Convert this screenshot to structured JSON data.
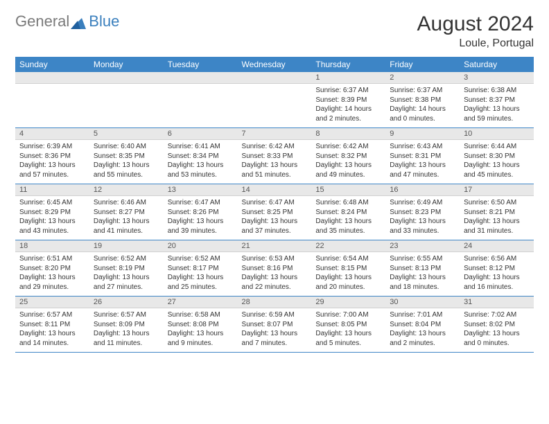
{
  "brand": {
    "part1": "General",
    "part2": "Blue"
  },
  "title": "August 2024",
  "location": "Loule, Portugal",
  "colors": {
    "header_bg": "#3d85c6",
    "header_text": "#ffffff",
    "daynum_bg": "#e8e8e8",
    "text": "#333333",
    "row_border": "#3d85c6"
  },
  "weekdays": [
    "Sunday",
    "Monday",
    "Tuesday",
    "Wednesday",
    "Thursday",
    "Friday",
    "Saturday"
  ],
  "weeks": [
    [
      {
        "blank": true
      },
      {
        "blank": true
      },
      {
        "blank": true
      },
      {
        "blank": true
      },
      {
        "n": "1",
        "sr": "6:37 AM",
        "ss": "8:39 PM",
        "dl": "14 hours and 2 minutes."
      },
      {
        "n": "2",
        "sr": "6:37 AM",
        "ss": "8:38 PM",
        "dl": "14 hours and 0 minutes."
      },
      {
        "n": "3",
        "sr": "6:38 AM",
        "ss": "8:37 PM",
        "dl": "13 hours and 59 minutes."
      }
    ],
    [
      {
        "n": "4",
        "sr": "6:39 AM",
        "ss": "8:36 PM",
        "dl": "13 hours and 57 minutes."
      },
      {
        "n": "5",
        "sr": "6:40 AM",
        "ss": "8:35 PM",
        "dl": "13 hours and 55 minutes."
      },
      {
        "n": "6",
        "sr": "6:41 AM",
        "ss": "8:34 PM",
        "dl": "13 hours and 53 minutes."
      },
      {
        "n": "7",
        "sr": "6:42 AM",
        "ss": "8:33 PM",
        "dl": "13 hours and 51 minutes."
      },
      {
        "n": "8",
        "sr": "6:42 AM",
        "ss": "8:32 PM",
        "dl": "13 hours and 49 minutes."
      },
      {
        "n": "9",
        "sr": "6:43 AM",
        "ss": "8:31 PM",
        "dl": "13 hours and 47 minutes."
      },
      {
        "n": "10",
        "sr": "6:44 AM",
        "ss": "8:30 PM",
        "dl": "13 hours and 45 minutes."
      }
    ],
    [
      {
        "n": "11",
        "sr": "6:45 AM",
        "ss": "8:29 PM",
        "dl": "13 hours and 43 minutes."
      },
      {
        "n": "12",
        "sr": "6:46 AM",
        "ss": "8:27 PM",
        "dl": "13 hours and 41 minutes."
      },
      {
        "n": "13",
        "sr": "6:47 AM",
        "ss": "8:26 PM",
        "dl": "13 hours and 39 minutes."
      },
      {
        "n": "14",
        "sr": "6:47 AM",
        "ss": "8:25 PM",
        "dl": "13 hours and 37 minutes."
      },
      {
        "n": "15",
        "sr": "6:48 AM",
        "ss": "8:24 PM",
        "dl": "13 hours and 35 minutes."
      },
      {
        "n": "16",
        "sr": "6:49 AM",
        "ss": "8:23 PM",
        "dl": "13 hours and 33 minutes."
      },
      {
        "n": "17",
        "sr": "6:50 AM",
        "ss": "8:21 PM",
        "dl": "13 hours and 31 minutes."
      }
    ],
    [
      {
        "n": "18",
        "sr": "6:51 AM",
        "ss": "8:20 PM",
        "dl": "13 hours and 29 minutes."
      },
      {
        "n": "19",
        "sr": "6:52 AM",
        "ss": "8:19 PM",
        "dl": "13 hours and 27 minutes."
      },
      {
        "n": "20",
        "sr": "6:52 AM",
        "ss": "8:17 PM",
        "dl": "13 hours and 25 minutes."
      },
      {
        "n": "21",
        "sr": "6:53 AM",
        "ss": "8:16 PM",
        "dl": "13 hours and 22 minutes."
      },
      {
        "n": "22",
        "sr": "6:54 AM",
        "ss": "8:15 PM",
        "dl": "13 hours and 20 minutes."
      },
      {
        "n": "23",
        "sr": "6:55 AM",
        "ss": "8:13 PM",
        "dl": "13 hours and 18 minutes."
      },
      {
        "n": "24",
        "sr": "6:56 AM",
        "ss": "8:12 PM",
        "dl": "13 hours and 16 minutes."
      }
    ],
    [
      {
        "n": "25",
        "sr": "6:57 AM",
        "ss": "8:11 PM",
        "dl": "13 hours and 14 minutes."
      },
      {
        "n": "26",
        "sr": "6:57 AM",
        "ss": "8:09 PM",
        "dl": "13 hours and 11 minutes."
      },
      {
        "n": "27",
        "sr": "6:58 AM",
        "ss": "8:08 PM",
        "dl": "13 hours and 9 minutes."
      },
      {
        "n": "28",
        "sr": "6:59 AM",
        "ss": "8:07 PM",
        "dl": "13 hours and 7 minutes."
      },
      {
        "n": "29",
        "sr": "7:00 AM",
        "ss": "8:05 PM",
        "dl": "13 hours and 5 minutes."
      },
      {
        "n": "30",
        "sr": "7:01 AM",
        "ss": "8:04 PM",
        "dl": "13 hours and 2 minutes."
      },
      {
        "n": "31",
        "sr": "7:02 AM",
        "ss": "8:02 PM",
        "dl": "13 hours and 0 minutes."
      }
    ]
  ],
  "labels": {
    "sunrise": "Sunrise: ",
    "sunset": "Sunset: ",
    "daylight": "Daylight: "
  }
}
